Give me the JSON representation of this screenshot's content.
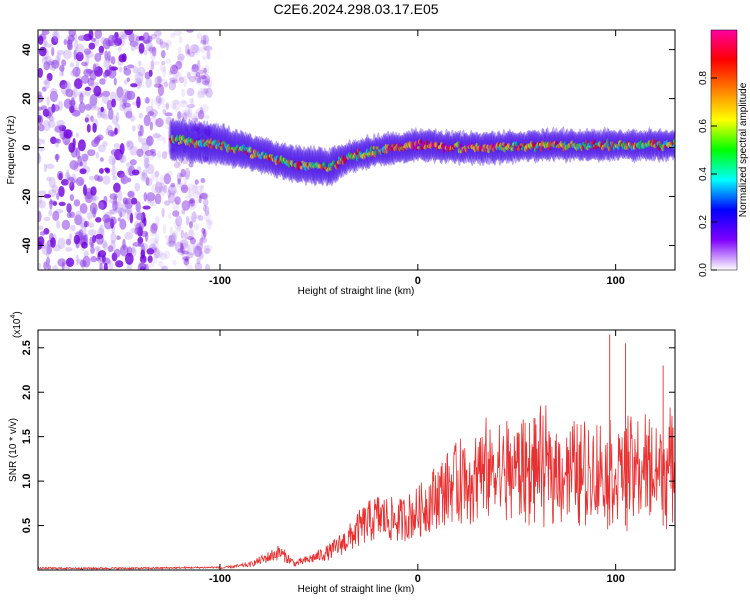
{
  "title": "C2E6.2024.298.03.17.E05",
  "chart_data": [
    {
      "type": "heatmap",
      "xlabel": "Height of straight line (km)",
      "ylabel": "Frequency (Hz)",
      "xlim": [
        -192,
        130
      ],
      "ylim": [
        -50,
        48
      ],
      "xticks": [
        -100,
        0,
        100
      ],
      "yticks": [
        -40,
        -20,
        0,
        20,
        40
      ],
      "colorbar": {
        "label": "Normalized spectral amplitude",
        "range": [
          0,
          1
        ],
        "ticks": [
          "0.0",
          "0.2",
          "0.4",
          "0.6",
          "0.8"
        ],
        "tick_values": [
          0,
          0.2,
          0.4,
          0.6,
          0.8
        ],
        "colors": [
          "#ffffff",
          "#7f00ff",
          "#0000ff",
          "#00ffff",
          "#00ff00",
          "#ffff00",
          "#ff8000",
          "#ff0000",
          "#ff00a0"
        ]
      },
      "ridge": {
        "x": [
          -120,
          -100,
          -80,
          -60,
          -45,
          -35,
          -20,
          -10,
          0,
          20,
          40,
          60,
          80,
          100,
          130
        ],
        "y": [
          3,
          1,
          -3,
          -7,
          -8,
          -4,
          -1,
          0,
          1,
          0,
          0,
          1,
          1,
          1,
          1
        ]
      },
      "noise_region_x": [
        -192,
        -115
      ]
    },
    {
      "type": "line",
      "xlabel": "Height of straight line (km)",
      "ylabel": "SNR (10 * v/v)",
      "y_multiplier": "(x10",
      "y_multiplier_exp": "4",
      "y_multiplier_close": ")",
      "xlim": [
        -192,
        130
      ],
      "ylim": [
        0,
        2.7
      ],
      "xticks": [
        -100,
        0,
        100
      ],
      "yticks": [
        0.5,
        1.0,
        1.5,
        2.0,
        2.5
      ],
      "ytick_labels": [
        "0.5",
        "1.0",
        "1.5",
        "2.0",
        "2.5"
      ],
      "color": "#e83030",
      "envelope": {
        "x": [
          -192,
          -140,
          -100,
          -85,
          -75,
          -70,
          -62,
          -55,
          -45,
          -35,
          -28,
          -20,
          -10,
          0,
          10,
          20,
          30,
          40,
          60,
          80,
          100,
          130
        ],
        "y": [
          0.01,
          0.01,
          0.02,
          0.06,
          0.15,
          0.2,
          0.07,
          0.12,
          0.2,
          0.35,
          0.5,
          0.6,
          0.55,
          0.65,
          0.85,
          1.0,
          1.05,
          1.1,
          1.15,
          1.1,
          1.1,
          1.15
        ]
      },
      "peaks": [
        {
          "x": 97,
          "y": 2.65
        },
        {
          "x": 105,
          "y": 2.55
        },
        {
          "x": 124,
          "y": 2.3
        }
      ]
    }
  ]
}
